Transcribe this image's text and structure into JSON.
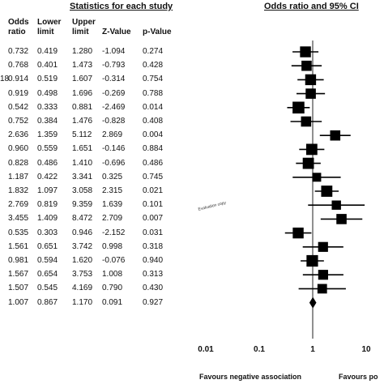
{
  "stats_title": "Statistics for each study",
  "forest_title": "Odds ratio and 95% CI",
  "columns": [
    {
      "key": "or",
      "label": "Odds\nratio"
    },
    {
      "key": "lower",
      "label": "Lower\nlimit"
    },
    {
      "key": "upper",
      "label": "Upper\nlimit"
    },
    {
      "key": "z",
      "label": "Z-Value"
    },
    {
      "key": "p",
      "label": "p-Value"
    }
  ],
  "row_prefixes": {
    "2": "18"
  },
  "watermark": "Evaluation copy",
  "favours_left": "Favours  negative association",
  "favours_right": "Favours po",
  "chart_data": {
    "type": "forest",
    "title": "Odds ratio and 95% CI",
    "x_scale": "log",
    "x_ticks": [
      0.01,
      0.1,
      1,
      10
    ],
    "x_tick_labels": [
      "0.01",
      "0.1",
      "1",
      "10"
    ],
    "xlim": [
      0.01,
      20
    ],
    "studies": [
      {
        "or": "0.732",
        "lower": "0.419",
        "upper": "1.280",
        "z": "-1.094",
        "p": "0.274"
      },
      {
        "or": "0.768",
        "lower": "0.401",
        "upper": "1.473",
        "z": "-0.793",
        "p": "0.428"
      },
      {
        "or": "0.914",
        "lower": "0.519",
        "upper": "1.607",
        "z": "-0.314",
        "p": "0.754"
      },
      {
        "or": "0.919",
        "lower": "0.498",
        "upper": "1.696",
        "z": "-0.269",
        "p": "0.788"
      },
      {
        "or": "0.542",
        "lower": "0.333",
        "upper": "0.881",
        "z": "-2.469",
        "p": "0.014"
      },
      {
        "or": "0.752",
        "lower": "0.384",
        "upper": "1.476",
        "z": "-0.828",
        "p": "0.408"
      },
      {
        "or": "2.636",
        "lower": "1.359",
        "upper": "5.112",
        "z": "2.869",
        "p": "0.004"
      },
      {
        "or": "0.960",
        "lower": "0.559",
        "upper": "1.651",
        "z": "-0.146",
        "p": "0.884"
      },
      {
        "or": "0.828",
        "lower": "0.486",
        "upper": "1.410",
        "z": "-0.696",
        "p": "0.486"
      },
      {
        "or": "1.187",
        "lower": "0.422",
        "upper": "3.341",
        "z": "0.325",
        "p": "0.745"
      },
      {
        "or": "1.832",
        "lower": "1.097",
        "upper": "3.058",
        "z": "2.315",
        "p": "0.021"
      },
      {
        "or": "2.769",
        "lower": "0.819",
        "upper": "9.359",
        "z": "1.639",
        "p": "0.101"
      },
      {
        "or": "3.455",
        "lower": "1.409",
        "upper": "8.472",
        "z": "2.709",
        "p": "0.007"
      },
      {
        "or": "0.535",
        "lower": "0.303",
        "upper": "0.946",
        "z": "-2.152",
        "p": "0.031"
      },
      {
        "or": "1.561",
        "lower": "0.651",
        "upper": "3.742",
        "z": "0.998",
        "p": "0.318"
      },
      {
        "or": "0.981",
        "lower": "0.594",
        "upper": "1.620",
        "z": "-0.076",
        "p": "0.940"
      },
      {
        "or": "1.567",
        "lower": "0.654",
        "upper": "3.753",
        "z": "1.008",
        "p": "0.313"
      },
      {
        "or": "1.507",
        "lower": "0.545",
        "upper": "4.169",
        "z": "0.790",
        "p": "0.430"
      }
    ],
    "summary": {
      "or": "1.007",
      "lower": "0.867",
      "upper": "1.170",
      "z": "0.091",
      "p": "0.927"
    },
    "marker_weights": [
      0.8,
      0.7,
      0.8,
      0.7,
      0.95,
      0.7,
      0.7,
      0.85,
      0.85,
      0.5,
      0.85,
      0.55,
      0.7,
      0.8,
      0.65,
      0.9,
      0.65,
      0.6
    ]
  }
}
